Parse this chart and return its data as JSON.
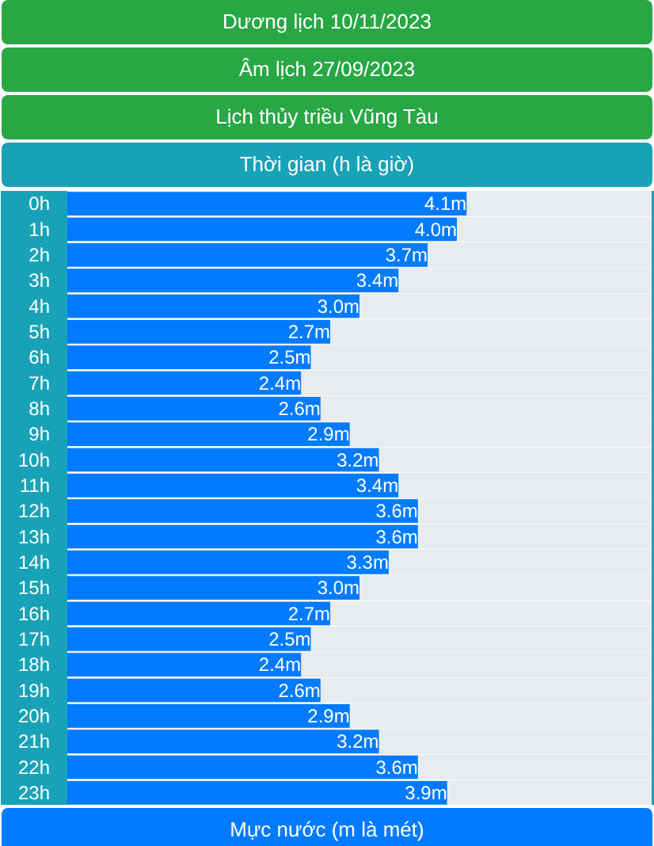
{
  "chart_data": {
    "type": "bar",
    "orientation": "horizontal",
    "annotations": [
      "Dương lịch 10/11/2023",
      "Âm lịch 27/09/2023"
    ],
    "title": "Lịch thủy triều Vũng Tàu",
    "ylabel": "Thời gian (h là giờ)",
    "xlabel": "Mực nước (m là mét)",
    "categories": [
      "0h",
      "1h",
      "2h",
      "3h",
      "4h",
      "5h",
      "6h",
      "7h",
      "8h",
      "9h",
      "10h",
      "11h",
      "12h",
      "13h",
      "14h",
      "15h",
      "16h",
      "17h",
      "18h",
      "19h",
      "20h",
      "21h",
      "22h",
      "23h"
    ],
    "values": [
      4.1,
      4.0,
      3.7,
      3.4,
      3.0,
      2.7,
      2.5,
      2.4,
      2.6,
      2.9,
      3.2,
      3.4,
      3.6,
      3.6,
      3.3,
      3.0,
      2.7,
      2.5,
      2.4,
      2.6,
      2.9,
      3.2,
      3.6,
      3.9
    ],
    "value_labels": [
      "4.1m",
      "4.0m",
      "3.7m",
      "3.4m",
      "3.0m",
      "2.7m",
      "2.5m",
      "2.4m",
      "2.6m",
      "2.9m",
      "3.2m",
      "3.4m",
      "3.6m",
      "3.6m",
      "3.3m",
      "3.0m",
      "2.7m",
      "2.5m",
      "2.4m",
      "2.6m",
      "2.9m",
      "3.2m",
      "3.6m",
      "3.9m"
    ],
    "color": "#007bff",
    "xlim": [
      0,
      6
    ],
    "tick_labels": "y",
    "grid": false
  }
}
